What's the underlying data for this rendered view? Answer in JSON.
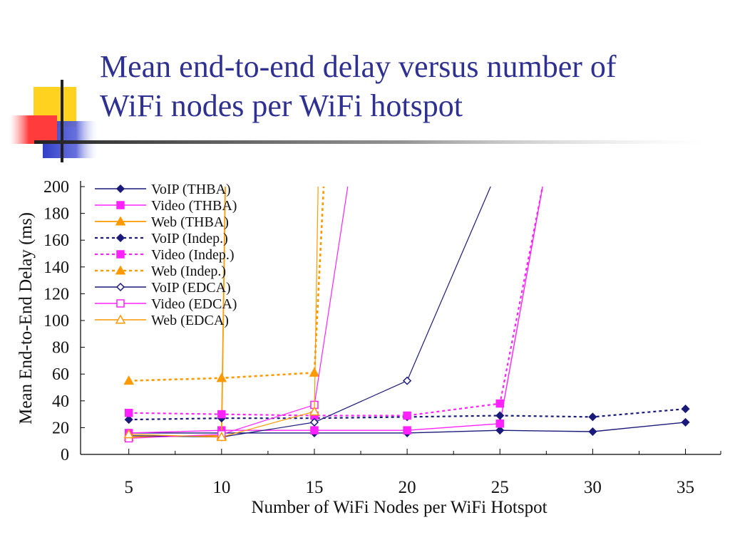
{
  "slide": {
    "title_line1": "Mean end-to-end delay versus number of",
    "title_line2": "WiFi nodes per WiFi hotspot",
    "title_color": "#2e3192",
    "decoration_colors": {
      "yellow": "#ffd21f",
      "red": "#ff3b3b",
      "blue": "#3240c8",
      "rule": "#222222"
    }
  },
  "chart_data": {
    "type": "line",
    "xlabel": "Number of WiFi Nodes per WiFi Hotspot",
    "ylabel": "Mean End-to-End Delay (ms)",
    "xlim": [
      2.4,
      36.9
    ],
    "ylim": [
      0,
      200
    ],
    "xticks": [
      5,
      10,
      15,
      20,
      25,
      30,
      35
    ],
    "yticks": [
      0,
      20,
      40,
      60,
      80,
      100,
      120,
      140,
      160,
      180,
      200
    ],
    "grid": false,
    "legend_position": "top-left",
    "series": [
      {
        "name": "VoIP (THBA)",
        "color": "#1a1a7a",
        "dash": "solid",
        "marker": "diamond",
        "filled": true,
        "stroke_width": 1.4,
        "points": [
          [
            5,
            16
          ],
          [
            10,
            16
          ],
          [
            15,
            16
          ],
          [
            20,
            16
          ],
          [
            25,
            18
          ],
          [
            30,
            17
          ],
          [
            35,
            24
          ]
        ]
      },
      {
        "name": "Video (THBA)",
        "color": "#ff22ff",
        "dash": "solid",
        "marker": "square",
        "filled": true,
        "stroke_width": 1.4,
        "points": [
          [
            5,
            16
          ],
          [
            10,
            18
          ],
          [
            15,
            18
          ],
          [
            20,
            18
          ],
          [
            25,
            23
          ],
          [
            27.3,
            200
          ]
        ]
      },
      {
        "name": "Web (THBA)",
        "color": "#ff9900",
        "dash": "solid",
        "marker": "triangle",
        "filled": true,
        "stroke_width": 1.8,
        "points": [
          [
            5,
            13
          ],
          [
            10,
            14
          ],
          [
            10.2,
            200
          ]
        ]
      },
      {
        "name": "VoIP (Indep.)",
        "color": "#1a1a7a",
        "dash": "dotted",
        "marker": "diamond",
        "filled": true,
        "stroke_width": 2.2,
        "points": [
          [
            5,
            26
          ],
          [
            10,
            27
          ],
          [
            15,
            27
          ],
          [
            20,
            28
          ],
          [
            25,
            29
          ],
          [
            30,
            28
          ],
          [
            35,
            34
          ]
        ]
      },
      {
        "name": "Video (Indep.)",
        "color": "#ff22ff",
        "dash": "dotted",
        "marker": "square",
        "filled": true,
        "stroke_width": 2.2,
        "points": [
          [
            5,
            31
          ],
          [
            10,
            30
          ],
          [
            15,
            29
          ],
          [
            20,
            29
          ],
          [
            25,
            38
          ],
          [
            27.3,
            200
          ]
        ]
      },
      {
        "name": "Web (Indep.)",
        "color": "#ff9900",
        "dash": "dotted",
        "marker": "triangle",
        "filled": true,
        "stroke_width": 2.6,
        "points": [
          [
            5,
            55
          ],
          [
            10,
            57
          ],
          [
            15,
            61
          ],
          [
            15.5,
            200
          ]
        ]
      },
      {
        "name": "VoIP (EDCA)",
        "color": "#1a1a7a",
        "dash": "solid",
        "marker": "diamond",
        "filled": false,
        "stroke_width": 1.2,
        "points": [
          [
            5,
            14
          ],
          [
            10,
            13
          ],
          [
            15,
            24
          ],
          [
            20,
            55
          ],
          [
            24.5,
            200
          ]
        ]
      },
      {
        "name": "Video (EDCA)",
        "color": "#ff22ff",
        "dash": "solid",
        "marker": "square",
        "filled": false,
        "stroke_width": 1.2,
        "points": [
          [
            5,
            12
          ],
          [
            10,
            15
          ],
          [
            15,
            37
          ],
          [
            16.8,
            200
          ]
        ]
      },
      {
        "name": "Web (EDCA)",
        "color": "#ff9900",
        "dash": "solid",
        "marker": "triangle",
        "filled": false,
        "stroke_width": 1.2,
        "points": [
          [
            5,
            15
          ],
          [
            10,
            13
          ],
          [
            15,
            32
          ],
          [
            15.2,
            200
          ]
        ]
      }
    ]
  }
}
